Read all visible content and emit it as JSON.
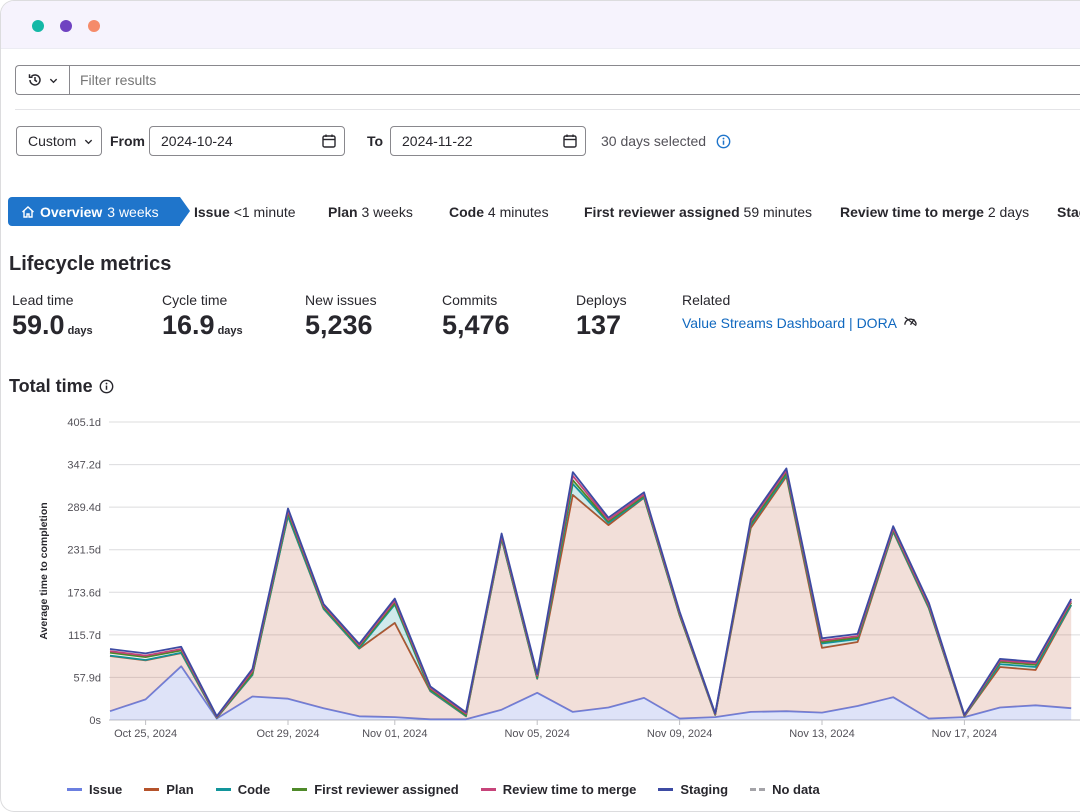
{
  "window": {
    "dot_colors": [
      "#14b8a6",
      "#6f42c1",
      "#f58b6a"
    ]
  },
  "filter": {
    "placeholder": "Filter results",
    "history_icon": "history-icon"
  },
  "date_range": {
    "preset": "Custom",
    "from_label": "From",
    "from_value": "2024-10-24",
    "to_label": "To",
    "to_value": "2024-11-22",
    "selected_text": "30 days selected"
  },
  "stages": {
    "overview": {
      "name": "Overview",
      "value": "3 weeks"
    },
    "items": [
      {
        "name": "Issue",
        "value": "<1 minute"
      },
      {
        "name": "Plan",
        "value": "3 weeks"
      },
      {
        "name": "Code",
        "value": "4 minutes"
      },
      {
        "name": "First reviewer assigned",
        "value": "59 minutes"
      },
      {
        "name": "Review time to merge",
        "value": "2 days"
      },
      {
        "name": "Stag",
        "value": ""
      }
    ]
  },
  "lifecycle": {
    "title": "Lifecycle metrics",
    "metrics": [
      {
        "label": "Lead time",
        "value": "59.0",
        "unit": "days"
      },
      {
        "label": "Cycle time",
        "value": "16.9",
        "unit": "days"
      },
      {
        "label": "New issues",
        "value": "5,236",
        "unit": ""
      },
      {
        "label": "Commits",
        "value": "5,476",
        "unit": ""
      },
      {
        "label": "Deploys",
        "value": "137",
        "unit": ""
      }
    ],
    "related_label": "Related",
    "related_links": "Value Streams Dashboard | DORA"
  },
  "total_time": {
    "title": "Total time"
  },
  "colors": {
    "issue": "#6b7fe0",
    "plan": "#b5532b",
    "code": "#12959b",
    "first_reviewer": "#4f8a2a",
    "review_merge": "#c7447a",
    "staging": "#3d4ba3",
    "no_data": "#a4a3a8"
  },
  "chart_data": {
    "type": "area",
    "ylabel": "Average time to completion",
    "xlabel": "",
    "y_ticks": [
      "0s",
      "57.9d",
      "115.7d",
      "173.6d",
      "231.5d",
      "289.4d",
      "347.2d",
      "405.1d"
    ],
    "ylim": [
      0,
      405.1
    ],
    "x_ticks": [
      "Oct 25, 2024",
      "Oct 29, 2024",
      "Nov 01, 2024",
      "Nov 05, 2024",
      "Nov 09, 2024",
      "Nov 13, 2024",
      "Nov 17, 2024"
    ],
    "x_tick_day_index": [
      1,
      5,
      8,
      12,
      16,
      20,
      24
    ],
    "x_day_count": 30,
    "stacked": true,
    "series": [
      {
        "name": "Issue",
        "color_key": "issue",
        "values": [
          12,
          28,
          73,
          2,
          32,
          29,
          16,
          5,
          4,
          1,
          1,
          14,
          37,
          11,
          17,
          30,
          2,
          4,
          11,
          12,
          10,
          19,
          31,
          2,
          4,
          17,
          20,
          16
        ]
      },
      {
        "name": "Plan",
        "color_key": "plan",
        "values": [
          75,
          53,
          18,
          1,
          29,
          248,
          135,
          92,
          128,
          38,
          4,
          232,
          19,
          295,
          248,
          272,
          140,
          3,
          250,
          319,
          88,
          87,
          225,
          150,
          1,
          55,
          48,
          140
        ]
      },
      {
        "name": "Code",
        "color_key": "code",
        "values": [
          0.5,
          0.5,
          0.5,
          0.1,
          0.5,
          0.5,
          0.5,
          0.5,
          25,
          0.5,
          0.5,
          0.5,
          0.5,
          15,
          3,
          0.5,
          0.5,
          0.1,
          4,
          2,
          6,
          4,
          0.5,
          0.5,
          0.1,
          4,
          4,
          0.5
        ]
      },
      {
        "name": "First reviewer assigned",
        "color_key": "first_reviewer",
        "values": [
          4,
          4,
          3,
          0.5,
          2,
          4,
          2,
          2,
          2,
          2,
          1,
          2,
          2,
          5,
          2,
          2,
          1,
          0.5,
          2,
          3,
          2,
          2,
          2,
          2,
          0.5,
          3,
          3,
          3
        ]
      },
      {
        "name": "Review time to merge",
        "color_key": "review_merge",
        "values": [
          2,
          2,
          2,
          0.5,
          3,
          3,
          2,
          2,
          3,
          2,
          2,
          2,
          2,
          6,
          2,
          2,
          2,
          0.5,
          3,
          3,
          2,
          2,
          2,
          2,
          0.5,
          2,
          2,
          2
        ]
      },
      {
        "name": "Staging",
        "color_key": "staging",
        "values": [
          3,
          3,
          3,
          1,
          3,
          3,
          2,
          2,
          3,
          2,
          2,
          3,
          2,
          5,
          3,
          3,
          2,
          1,
          3,
          3,
          3,
          3,
          3,
          3,
          1,
          2,
          2,
          3
        ]
      }
    ],
    "legend": [
      "Issue",
      "Plan",
      "Code",
      "First reviewer assigned",
      "Review time to merge",
      "Staging",
      "No data"
    ],
    "grid": true,
    "legend_position": "bottom-left"
  }
}
